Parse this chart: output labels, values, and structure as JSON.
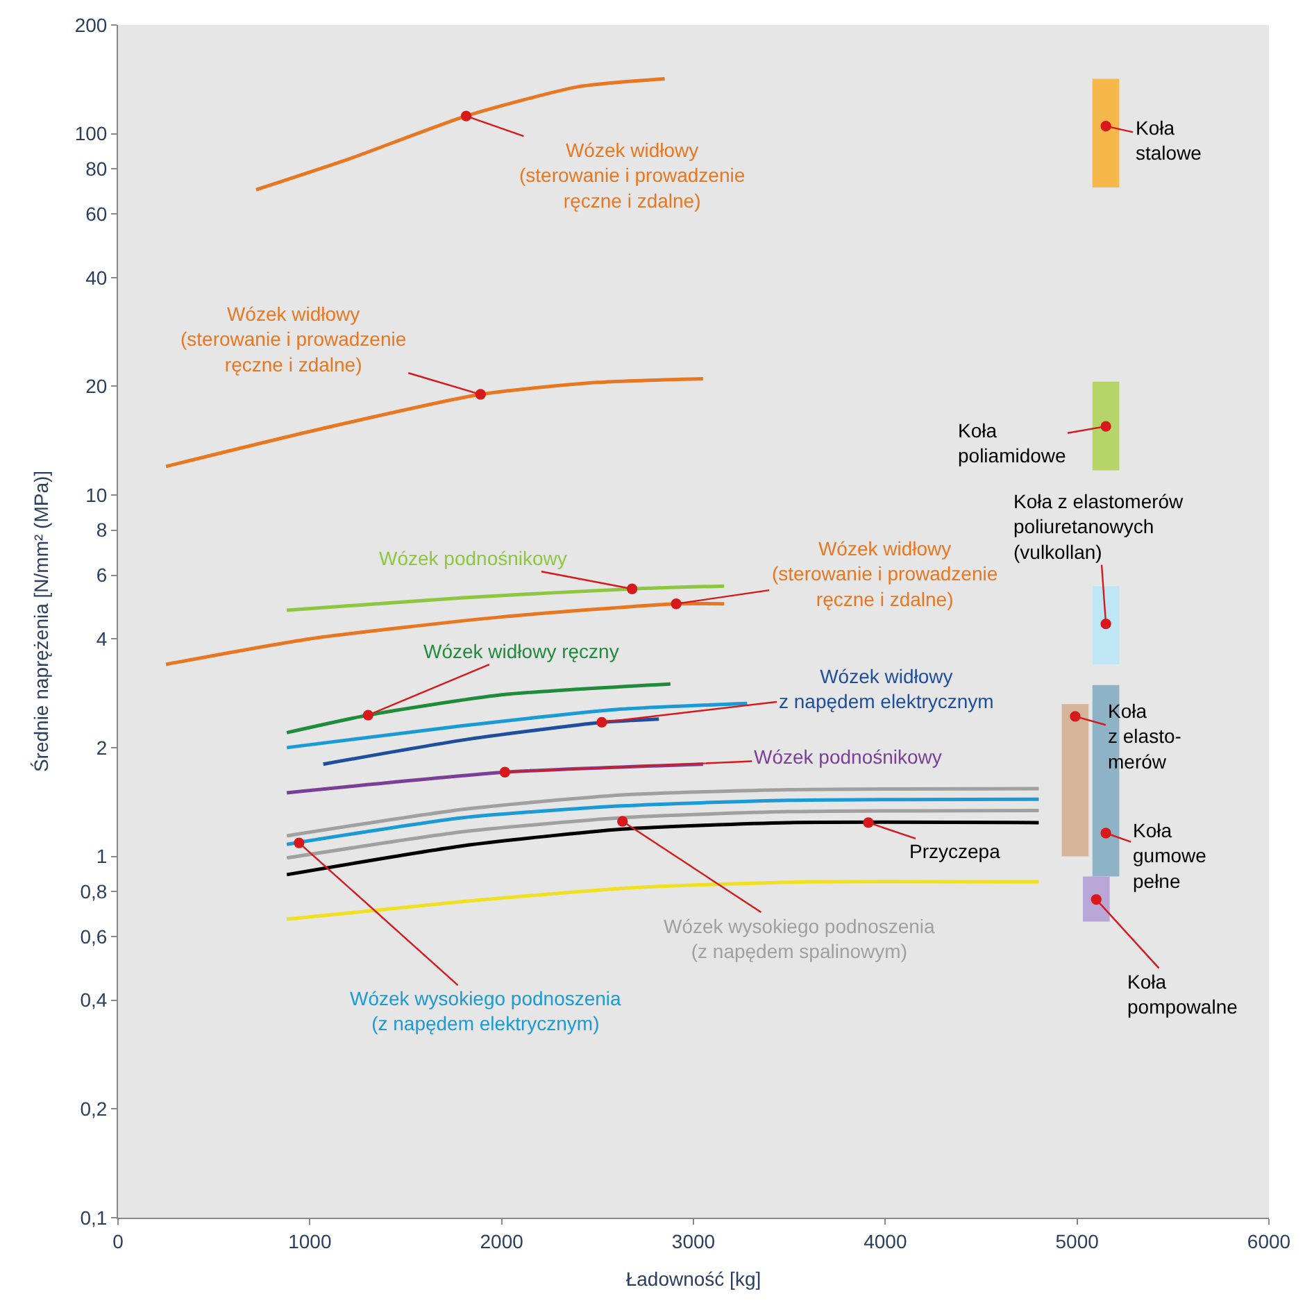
{
  "chart_data": {
    "type": "line",
    "xlabel": "Ładowność [kg]",
    "ylabel": "Średnie naprężenia [N/mm² (MPa)]",
    "log": "y",
    "grid": false,
    "xlim": [
      0,
      6000
    ],
    "xticks": [
      0,
      1000,
      2000,
      3000,
      4000,
      5000,
      6000
    ],
    "ylim": [
      0.1,
      200
    ],
    "yticks": [
      {
        "value": 0.1,
        "label": "0,1"
      },
      {
        "value": 0.2,
        "label": "0,2"
      },
      {
        "value": 0.4,
        "label": "0,4"
      },
      {
        "value": 0.6,
        "label": "0,6"
      },
      {
        "value": 0.8,
        "label": "0,8"
      },
      1,
      2,
      4,
      6,
      8,
      10,
      20,
      40,
      60,
      80,
      100,
      200
    ],
    "series": [
      {
        "type": "bar",
        "color": "#f7b84b",
        "x": [
          5150
        ],
        "base": [
          71
        ],
        "values": [
          71
        ]
      },
      {
        "type": "bar",
        "color": "#b5d56a",
        "x": [
          5150
        ],
        "base": [
          11.7
        ],
        "values": [
          8.9
        ]
      },
      {
        "type": "bar",
        "color": "#bfe6f5",
        "x": [
          5150
        ],
        "base": [
          3.4
        ],
        "values": [
          2.2
        ]
      },
      {
        "type": "bar",
        "color": "#8fb3c6",
        "x": [
          5150
        ],
        "base": [
          0.88
        ],
        "values": [
          2.1
        ]
      },
      {
        "type": "bar",
        "color": "#d4b59a",
        "x": [
          4990
        ],
        "base": [
          1.0
        ],
        "values": [
          1.64
        ]
      },
      {
        "type": "bar",
        "color": "#b8a7d6",
        "x": [
          5100
        ],
        "base": [
          0.66
        ],
        "values": [
          0.22
        ]
      },
      {
        "color": "#e87722",
        "x": [
          720,
          1200,
          1815,
          2400,
          2850
        ],
        "values": [
          70,
          85,
          112,
          135,
          142
        ]
      },
      {
        "color": "#e87722",
        "x": [
          250,
          1000,
          1890,
          2500,
          3050
        ],
        "values": [
          12,
          15,
          19,
          20.5,
          21
        ]
      },
      {
        "color": "#8dc63f",
        "x": [
          880,
          1800,
          2680,
          3160
        ],
        "values": [
          4.8,
          5.2,
          5.5,
          5.6
        ]
      },
      {
        "color": "#e87722",
        "x": [
          250,
          1000,
          2000,
          2910,
          3160
        ],
        "values": [
          3.4,
          4.0,
          4.6,
          5.0,
          5.0
        ]
      },
      {
        "color": "#1e8c3a",
        "x": [
          880,
          1304,
          2000,
          2880
        ],
        "values": [
          2.2,
          2.46,
          2.8,
          3.0
        ]
      },
      {
        "color": "#1a9ad6",
        "x": [
          880,
          1800,
          2600,
          3280
        ],
        "values": [
          2.0,
          2.3,
          2.55,
          2.65
        ]
      },
      {
        "color": "#1f4e9c",
        "x": [
          1070,
          1800,
          2522,
          2820
        ],
        "values": [
          1.8,
          2.1,
          2.35,
          2.4
        ]
      },
      {
        "color": "#7b3f98",
        "x": [
          880,
          2017,
          3050
        ],
        "values": [
          1.5,
          1.71,
          1.8
        ]
      },
      {
        "color": "#a0a0a0",
        "x": [
          880,
          1800,
          2630,
          3500,
          4800
        ],
        "values": [
          1.14,
          1.35,
          1.48,
          1.53,
          1.54
        ]
      },
      {
        "color": "#1a9ad6",
        "x": [
          880,
          1800,
          2630,
          3500,
          4800
        ],
        "values": [
          1.08,
          1.28,
          1.38,
          1.43,
          1.44
        ]
      },
      {
        "color": "#a0a0a0",
        "x": [
          880,
          1800,
          2630,
          3500,
          4800
        ],
        "values": [
          0.99,
          1.17,
          1.28,
          1.33,
          1.34
        ]
      },
      {
        "color": "#000000",
        "x": [
          880,
          1800,
          2630,
          3500,
          4800
        ],
        "values": [
          0.89,
          1.07,
          1.19,
          1.24,
          1.24
        ]
      },
      {
        "color": "#f0e020",
        "x": [
          880,
          1800,
          2700,
          3600,
          4800
        ],
        "values": [
          0.67,
          0.75,
          0.82,
          0.85,
          0.85
        ]
      }
    ],
    "annotations": [
      {
        "text": "Wózek widłowy\n(sterowanie i prowadzenie\nręczne i zdalne)",
        "x": 1815,
        "y": 112
      },
      {
        "text": "Wózek widłowy\n(sterowanie i prowadzenie\nręczne i zdalne)",
        "x": 1890,
        "y": 19
      },
      {
        "text": "Wózek podnośnikowy",
        "x": 2680,
        "y": 5.5
      },
      {
        "text": "Wózek widłowy\n(sterowanie i prowadzenie\nręczne i zdalne)",
        "x": 2910,
        "y": 5.0
      },
      {
        "text": "Wózek widłowy ręczny",
        "x": 1304,
        "y": 2.46
      },
      {
        "text": "Wózek widłowy\nz napędem elektrycznym",
        "x": 2522,
        "y": 2.35
      },
      {
        "text": "Wózek podnośnikowy",
        "x": 2017,
        "y": 1.71
      },
      {
        "text": "Przyczepa",
        "x": 3912,
        "y": 1.24
      },
      {
        "text": "Wózek wysokiego podnoszenia\n(z napędem spalinowym)",
        "x": 2630,
        "y": 1.25
      },
      {
        "text": "Wózek wysokiego podnoszenia\n(z napędem elektrycznym)",
        "x": 944,
        "y": 1.09
      },
      {
        "text": "Koła\nstalowe",
        "x": 5150,
        "y": 105
      },
      {
        "text": "Koła\npoliamidowe",
        "x": 5150,
        "y": 15.5
      },
      {
        "text": "Koła z elastomerów\npoliuretanowych\n(vulkollan)",
        "x": 5150,
        "y": 4.4
      },
      {
        "text": "Koła\nz elasto-\nmerów",
        "x": 4990,
        "y": 2.44
      },
      {
        "text": "Koła\ngumowe\npełne",
        "x": 5150,
        "y": 1.16
      },
      {
        "text": "Koła\npompowalne",
        "x": 5100,
        "y": 0.76
      }
    ]
  }
}
